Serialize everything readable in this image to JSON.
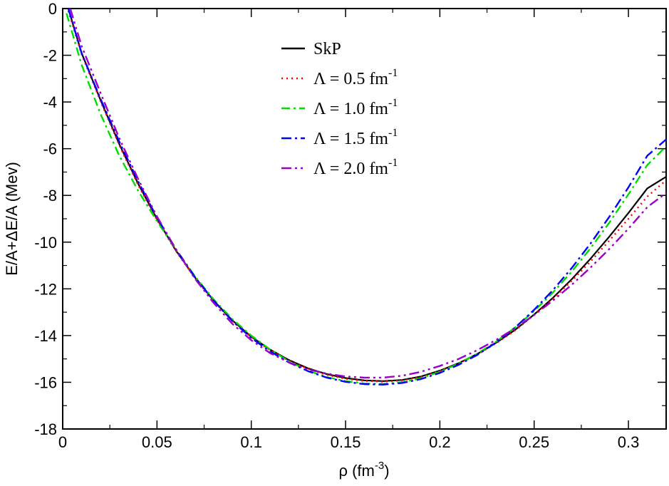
{
  "chart_data": {
    "type": "line",
    "title": "",
    "xlabel": {
      "base": "ρ (fm",
      "sup": "-3",
      "tail": ")"
    },
    "ylabel": "E/A+ΔE/A (Mev)",
    "xlim": [
      0,
      0.32
    ],
    "ylim": [
      -18,
      0
    ],
    "xticks": [
      0,
      0.05,
      0.1,
      0.15,
      0.2,
      0.25,
      0.3
    ],
    "xtick_labels": [
      "0",
      "0.05",
      "0.1",
      "0.15",
      "0.2",
      "0.25",
      "0.3"
    ],
    "yticks": [
      -18,
      -16,
      -14,
      -12,
      -10,
      -8,
      -6,
      -4,
      -2,
      0
    ],
    "ytick_labels": [
      "-18",
      "-16",
      "-14",
      "-12",
      "-10",
      "-8",
      "-6",
      "-4",
      "-2",
      "0"
    ],
    "legend_position": "top-center",
    "series": [
      {
        "name": "SkP",
        "legend_text": "SkP",
        "legend_sup": "",
        "color": "#000000",
        "dash": "",
        "points": [
          [
            0.003,
            0
          ],
          [
            0.01,
            -1.9
          ],
          [
            0.02,
            -3.9
          ],
          [
            0.03,
            -5.8
          ],
          [
            0.04,
            -7.5
          ],
          [
            0.05,
            -9.0
          ],
          [
            0.06,
            -10.35
          ],
          [
            0.07,
            -11.5
          ],
          [
            0.08,
            -12.5
          ],
          [
            0.09,
            -13.35
          ],
          [
            0.1,
            -14.05
          ],
          [
            0.11,
            -14.6
          ],
          [
            0.12,
            -15.05
          ],
          [
            0.13,
            -15.4
          ],
          [
            0.14,
            -15.65
          ],
          [
            0.15,
            -15.82
          ],
          [
            0.16,
            -15.92
          ],
          [
            0.17,
            -15.95
          ],
          [
            0.18,
            -15.9
          ],
          [
            0.19,
            -15.75
          ],
          [
            0.2,
            -15.5
          ],
          [
            0.21,
            -15.18
          ],
          [
            0.22,
            -14.78
          ],
          [
            0.23,
            -14.3
          ],
          [
            0.24,
            -13.75
          ],
          [
            0.25,
            -13.1
          ],
          [
            0.26,
            -12.38
          ],
          [
            0.27,
            -11.58
          ],
          [
            0.28,
            -10.7
          ],
          [
            0.29,
            -9.75
          ],
          [
            0.3,
            -8.75
          ],
          [
            0.31,
            -7.7
          ],
          [
            0.32,
            -7.2
          ]
        ]
      },
      {
        "name": "Λ = 0.5 fm-1",
        "legend_text": "Λ = 0.5 fm",
        "legend_sup": "-1",
        "color": "#ff0000",
        "dash": "2 5",
        "points": [
          [
            0.003,
            -0.1
          ],
          [
            0.01,
            -1.95
          ],
          [
            0.02,
            -3.95
          ],
          [
            0.03,
            -5.85
          ],
          [
            0.04,
            -7.55
          ],
          [
            0.05,
            -9.05
          ],
          [
            0.06,
            -10.38
          ],
          [
            0.07,
            -11.52
          ],
          [
            0.08,
            -12.52
          ],
          [
            0.09,
            -13.38
          ],
          [
            0.1,
            -14.08
          ],
          [
            0.11,
            -14.63
          ],
          [
            0.12,
            -15.08
          ],
          [
            0.13,
            -15.42
          ],
          [
            0.14,
            -15.68
          ],
          [
            0.15,
            -15.85
          ],
          [
            0.16,
            -15.94
          ],
          [
            0.17,
            -15.97
          ],
          [
            0.18,
            -15.92
          ],
          [
            0.19,
            -15.77
          ],
          [
            0.2,
            -15.52
          ],
          [
            0.21,
            -15.2
          ],
          [
            0.22,
            -14.8
          ],
          [
            0.23,
            -14.32
          ],
          [
            0.24,
            -13.77
          ],
          [
            0.25,
            -13.12
          ],
          [
            0.26,
            -12.42
          ],
          [
            0.27,
            -11.65
          ],
          [
            0.28,
            -10.82
          ],
          [
            0.29,
            -9.92
          ],
          [
            0.3,
            -9.0
          ],
          [
            0.31,
            -8.05
          ],
          [
            0.32,
            -7.35
          ]
        ]
      },
      {
        "name": "Λ = 1.0 fm-1",
        "legend_text": "Λ = 1.0 fm",
        "legend_sup": "-1",
        "color": "#00dd00",
        "dash": "12 5 3 5",
        "points": [
          [
            0.002,
            -0.2
          ],
          [
            0.01,
            -2.4
          ],
          [
            0.02,
            -4.5
          ],
          [
            0.03,
            -6.3
          ],
          [
            0.04,
            -7.8
          ],
          [
            0.05,
            -9.1
          ],
          [
            0.06,
            -10.3
          ],
          [
            0.07,
            -11.45
          ],
          [
            0.08,
            -12.45
          ],
          [
            0.09,
            -13.3
          ],
          [
            0.1,
            -14.0
          ],
          [
            0.11,
            -14.6
          ],
          [
            0.12,
            -15.1
          ],
          [
            0.13,
            -15.5
          ],
          [
            0.14,
            -15.78
          ],
          [
            0.15,
            -15.95
          ],
          [
            0.16,
            -16.05
          ],
          [
            0.17,
            -16.07
          ],
          [
            0.18,
            -16.0
          ],
          [
            0.19,
            -15.82
          ],
          [
            0.2,
            -15.55
          ],
          [
            0.21,
            -15.2
          ],
          [
            0.22,
            -14.77
          ],
          [
            0.23,
            -14.25
          ],
          [
            0.24,
            -13.65
          ],
          [
            0.25,
            -12.95
          ],
          [
            0.26,
            -12.15
          ],
          [
            0.27,
            -11.25
          ],
          [
            0.28,
            -10.25
          ],
          [
            0.29,
            -9.15
          ],
          [
            0.3,
            -7.95
          ],
          [
            0.31,
            -6.7
          ],
          [
            0.32,
            -5.9
          ]
        ]
      },
      {
        "name": "Λ = 1.5 fm-1",
        "legend_text": "Λ = 1.5 fm",
        "legend_sup": "-1",
        "color": "#0000ff",
        "dash": "14 5 3 5",
        "points": [
          [
            0.003,
            0
          ],
          [
            0.01,
            -1.9
          ],
          [
            0.02,
            -3.85
          ],
          [
            0.03,
            -5.7
          ],
          [
            0.04,
            -7.4
          ],
          [
            0.05,
            -8.95
          ],
          [
            0.06,
            -10.3
          ],
          [
            0.07,
            -11.48
          ],
          [
            0.08,
            -12.5
          ],
          [
            0.09,
            -13.38
          ],
          [
            0.1,
            -14.1
          ],
          [
            0.11,
            -14.68
          ],
          [
            0.12,
            -15.15
          ],
          [
            0.13,
            -15.52
          ],
          [
            0.14,
            -15.8
          ],
          [
            0.15,
            -15.98
          ],
          [
            0.16,
            -16.08
          ],
          [
            0.17,
            -16.1
          ],
          [
            0.18,
            -16.03
          ],
          [
            0.19,
            -15.86
          ],
          [
            0.2,
            -15.6
          ],
          [
            0.21,
            -15.25
          ],
          [
            0.22,
            -14.82
          ],
          [
            0.23,
            -14.28
          ],
          [
            0.24,
            -13.65
          ],
          [
            0.25,
            -12.9
          ],
          [
            0.26,
            -12.05
          ],
          [
            0.27,
            -11.1
          ],
          [
            0.28,
            -10.05
          ],
          [
            0.29,
            -8.9
          ],
          [
            0.3,
            -7.65
          ],
          [
            0.31,
            -6.3
          ],
          [
            0.32,
            -5.6
          ]
        ]
      },
      {
        "name": "Λ = 2.0 fm-1",
        "legend_text": "Λ = 2.0 fm",
        "legend_sup": "-1",
        "color": "#9900cc",
        "dash": "14 5 3 5 3 5",
        "points": [
          [
            0.004,
            0
          ],
          [
            0.01,
            -1.6
          ],
          [
            0.02,
            -3.6
          ],
          [
            0.03,
            -5.55
          ],
          [
            0.04,
            -7.3
          ],
          [
            0.05,
            -8.9
          ],
          [
            0.06,
            -10.3
          ],
          [
            0.07,
            -11.55
          ],
          [
            0.08,
            -12.6
          ],
          [
            0.09,
            -13.5
          ],
          [
            0.1,
            -14.2
          ],
          [
            0.11,
            -14.75
          ],
          [
            0.12,
            -15.15
          ],
          [
            0.13,
            -15.45
          ],
          [
            0.14,
            -15.63
          ],
          [
            0.15,
            -15.75
          ],
          [
            0.16,
            -15.8
          ],
          [
            0.17,
            -15.8
          ],
          [
            0.18,
            -15.72
          ],
          [
            0.19,
            -15.55
          ],
          [
            0.2,
            -15.3
          ],
          [
            0.21,
            -15.0
          ],
          [
            0.22,
            -14.62
          ],
          [
            0.23,
            -14.18
          ],
          [
            0.24,
            -13.68
          ],
          [
            0.25,
            -13.12
          ],
          [
            0.26,
            -12.5
          ],
          [
            0.27,
            -11.82
          ],
          [
            0.28,
            -11.08
          ],
          [
            0.29,
            -10.28
          ],
          [
            0.3,
            -9.42
          ],
          [
            0.31,
            -8.5
          ],
          [
            0.32,
            -7.9
          ]
        ]
      }
    ]
  }
}
